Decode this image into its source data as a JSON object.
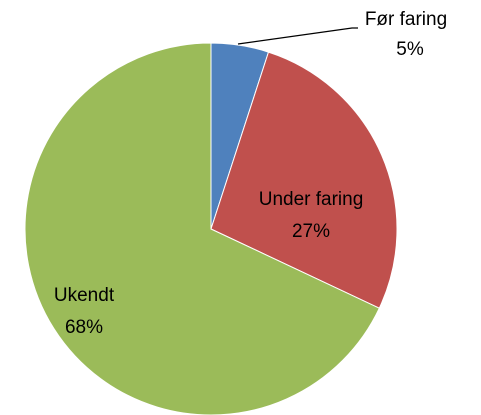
{
  "chart_data": {
    "type": "pie",
    "categories": [
      "Før faring",
      "Under faring",
      "Ukendt"
    ],
    "values": [
      5,
      27,
      68
    ],
    "value_labels": [
      "5%",
      "27%",
      "68%"
    ],
    "colors": [
      "#4f81bd",
      "#c0504d",
      "#9bbb59"
    ]
  }
}
